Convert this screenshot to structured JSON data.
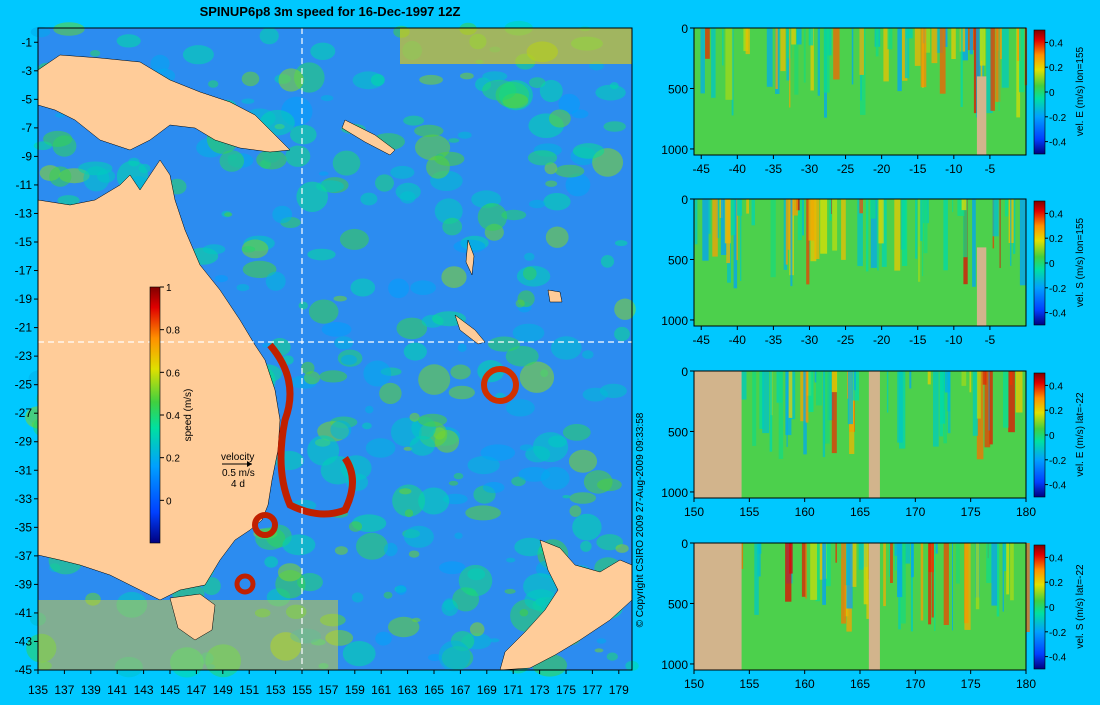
{
  "colors": {
    "background": "#00c8ff",
    "land": "#ffcc99",
    "section_land": "#d2b48c"
  },
  "chart_data": [
    {
      "type": "heatmap",
      "title": "SPINUP6p8 3m speed for 16-Dec-1997 12Z",
      "xlim": [
        135,
        180
      ],
      "ylim": [
        -45,
        0
      ],
      "x_ticks": [
        135,
        137,
        139,
        141,
        143,
        145,
        147,
        149,
        151,
        153,
        155,
        157,
        159,
        161,
        163,
        165,
        167,
        169,
        171,
        173,
        175,
        177,
        179
      ],
      "y_ticks": [
        -1,
        -3,
        -5,
        -7,
        -9,
        -11,
        -13,
        -15,
        -17,
        -19,
        -21,
        -23,
        -25,
        -27,
        -29,
        -31,
        -33,
        -35,
        -37,
        -39,
        -41,
        -43,
        -45
      ],
      "colorbar": {
        "label": "speed (m/s)",
        "ticks": [
          1,
          0.8,
          0.6,
          0.4,
          0.2,
          0
        ],
        "range": [
          -0.2,
          1
        ]
      },
      "vector_key": {
        "title": "velocity",
        "speed": "0.5 m/s",
        "duration": "4 d"
      },
      "section_lines": {
        "lon": 155,
        "lat": -22
      }
    },
    {
      "type": "heatmap",
      "colorbar": {
        "label": "vel. E (m/s) lon=155",
        "ticks": [
          0.4,
          0.2,
          0,
          -0.2,
          -0.4
        ]
      },
      "x_ticks": [
        -45,
        -40,
        -35,
        -30,
        -25,
        -20,
        -15,
        -10,
        -5
      ],
      "y_ticks": [
        0,
        500,
        1000
      ],
      "xlim": [
        -46,
        0
      ],
      "ylim": [
        1050,
        0
      ]
    },
    {
      "type": "heatmap",
      "colorbar": {
        "label": "vel. S (m/s) lon=155",
        "ticks": [
          0.4,
          0.2,
          0,
          -0.2,
          -0.4
        ]
      },
      "x_ticks": [
        -45,
        -40,
        -35,
        -30,
        -25,
        -20,
        -15,
        -10,
        -5
      ],
      "y_ticks": [
        0,
        500,
        1000
      ],
      "xlim": [
        -46,
        0
      ],
      "ylim": [
        1050,
        0
      ]
    },
    {
      "type": "heatmap",
      "colorbar": {
        "label": "vel. E (m/s) lat=-22",
        "ticks": [
          0.4,
          0.2,
          0,
          -0.2,
          -0.4
        ]
      },
      "x_ticks": [
        150,
        155,
        160,
        165,
        170,
        175,
        180
      ],
      "y_ticks": [
        0,
        500,
        1000
      ],
      "xlim": [
        150,
        180
      ],
      "ylim": [
        1050,
        0
      ]
    },
    {
      "type": "heatmap",
      "colorbar": {
        "label": "vel. S (m/s) lat=-22",
        "ticks": [
          0.4,
          0.2,
          0,
          -0.2,
          -0.4
        ]
      },
      "x_ticks": [
        150,
        155,
        160,
        165,
        170,
        175,
        180
      ],
      "y_ticks": [
        0,
        500,
        1000
      ],
      "xlim": [
        150,
        180
      ],
      "ylim": [
        1050,
        0
      ]
    }
  ],
  "copyright": "© Copyright CSIRO 2009   27-Aug-2009 09:33:58"
}
